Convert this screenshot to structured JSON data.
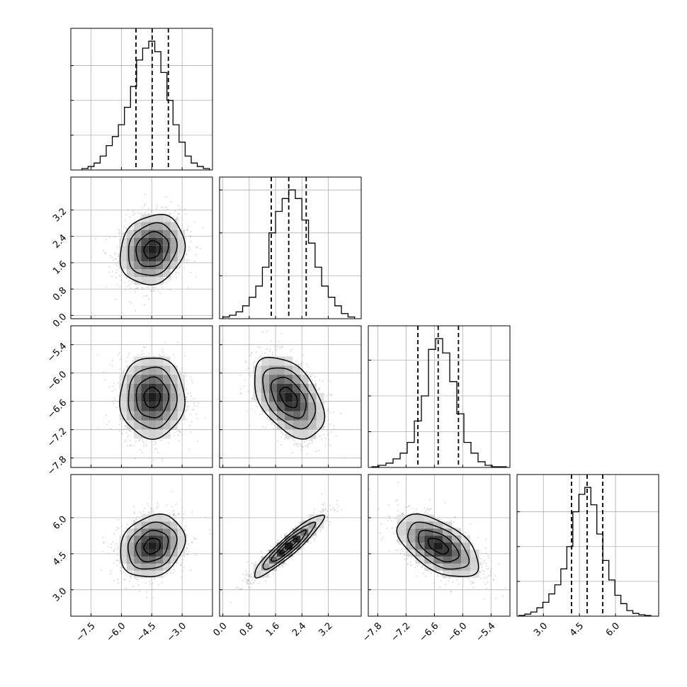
{
  "chart_data": {
    "type": "corner",
    "grid": true,
    "tick_labels": {
      "x": [
        [
          "−7.5",
          "−6.0",
          "−4.5",
          "−3.0"
        ],
        [
          "0.0",
          "0.8",
          "1.6",
          "2.4",
          "3.2"
        ],
        [
          "−7.8",
          "−7.2",
          "−6.6",
          "−6.0",
          "−5.4"
        ],
        [
          "3.0",
          "4.5",
          "6.0"
        ]
      ],
      "y": [
        [],
        [
          "0.0",
          "0.8",
          "1.6",
          "2.4",
          "3.2"
        ],
        [
          "−7.8",
          "−7.2",
          "−6.6",
          "−6.0",
          "−5.4"
        ],
        [
          "3.0",
          "4.5",
          "6.0"
        ]
      ]
    },
    "parameters": [
      {
        "range": [
          -8.5,
          -1.5
        ],
        "ticks": [
          -7.5,
          -6.0,
          -4.5,
          -3.0
        ],
        "histogram": {
          "bin_centers": [
            -7.8,
            -7.5,
            -7.2,
            -6.9,
            -6.6,
            -6.3,
            -6.0,
            -5.7,
            -5.4,
            -5.1,
            -4.8,
            -4.5,
            -4.2,
            -3.9,
            -3.6,
            -3.3,
            -3.0,
            -2.7,
            -2.4,
            -2.1,
            -1.8
          ],
          "counts": [
            2,
            5,
            10,
            20,
            35,
            48,
            65,
            90,
            120,
            158,
            175,
            185,
            170,
            140,
            100,
            65,
            40,
            20,
            10,
            5,
            2
          ]
        },
        "quantiles": [
          -5.28,
          -4.48,
          -3.68
        ]
      },
      {
        "range": [
          -0.1,
          4.2
        ],
        "ticks": [
          0.0,
          0.8,
          1.6,
          2.4,
          3.2
        ],
        "histogram": {
          "bin_centers": [
            0.1,
            0.3,
            0.5,
            0.7,
            0.9,
            1.1,
            1.3,
            1.5,
            1.7,
            1.9,
            2.1,
            2.3,
            2.5,
            2.7,
            2.9,
            3.1,
            3.3,
            3.5,
            3.7,
            3.9
          ],
          "counts": [
            2,
            4,
            8,
            15,
            25,
            38,
            60,
            100,
            125,
            140,
            150,
            140,
            115,
            88,
            60,
            38,
            25,
            15,
            6,
            2
          ]
        },
        "quantiles": [
          1.47,
          2.0,
          2.53
        ]
      },
      {
        "range": [
          -8.0,
          -5.0
        ],
        "ticks": [
          -7.8,
          -7.2,
          -6.6,
          -6.0,
          -5.4
        ],
        "histogram": {
          "bin_centers": [
            -7.85,
            -7.7,
            -7.55,
            -7.4,
            -7.25,
            -7.1,
            -6.95,
            -6.8,
            -6.65,
            -6.5,
            -6.35,
            -6.2,
            -6.05,
            -5.9,
            -5.75,
            -5.6,
            -5.45,
            -5.3,
            -5.15
          ],
          "counts": [
            1,
            3,
            6,
            12,
            20,
            35,
            65,
            100,
            165,
            180,
            160,
            120,
            75,
            35,
            20,
            8,
            3,
            1,
            1
          ]
        },
        "quantiles": [
          -6.95,
          -6.52,
          -6.09
        ]
      },
      {
        "range": [
          1.9,
          7.8
        ],
        "ticks": [
          3.0,
          4.5,
          6.0
        ],
        "histogram": {
          "bin_centers": [
            2.1,
            2.35,
            2.6,
            2.85,
            3.1,
            3.35,
            3.6,
            3.85,
            4.1,
            4.35,
            4.6,
            4.85,
            5.1,
            5.35,
            5.6,
            5.85,
            6.1,
            6.35,
            6.6,
            6.85,
            7.1,
            7.35
          ],
          "counts": [
            1,
            3,
            6,
            12,
            20,
            32,
            45,
            68,
            100,
            150,
            175,
            185,
            160,
            118,
            80,
            52,
            30,
            18,
            8,
            4,
            2,
            1
          ]
        },
        "quantiles": [
          4.17,
          4.82,
          5.47
        ]
      }
    ],
    "joint": [
      {
        "row": 1,
        "col": 0,
        "mean": [
          -4.48,
          2.0
        ],
        "std": [
          0.8,
          0.53
        ],
        "corr": 0.15
      },
      {
        "row": 2,
        "col": 0,
        "mean": [
          -4.48,
          -6.52
        ],
        "std": [
          0.8,
          0.43
        ],
        "corr": 0.0
      },
      {
        "row": 2,
        "col": 1,
        "mean": [
          2.0,
          -6.52
        ],
        "std": [
          0.53,
          0.43
        ],
        "corr": -0.45
      },
      {
        "row": 3,
        "col": 0,
        "mean": [
          -4.48,
          4.82
        ],
        "std": [
          0.8,
          0.65
        ],
        "corr": 0.2
      },
      {
        "row": 3,
        "col": 1,
        "mean": [
          2.0,
          4.82
        ],
        "std": [
          0.53,
          0.65
        ],
        "corr": 0.93
      },
      {
        "row": 3,
        "col": 2,
        "mean": [
          -6.52,
          4.82
        ],
        "std": [
          0.43,
          0.65
        ],
        "corr": -0.55
      }
    ],
    "contour_levels_sigma": [
      0.5,
      1.0,
      1.5,
      2.0
    ],
    "colors": {
      "histogram_line": "#000000",
      "quantile_line": "#000000",
      "points": "#9a9a9a",
      "grid": "#b0b0b0",
      "contour": "#000000"
    }
  }
}
